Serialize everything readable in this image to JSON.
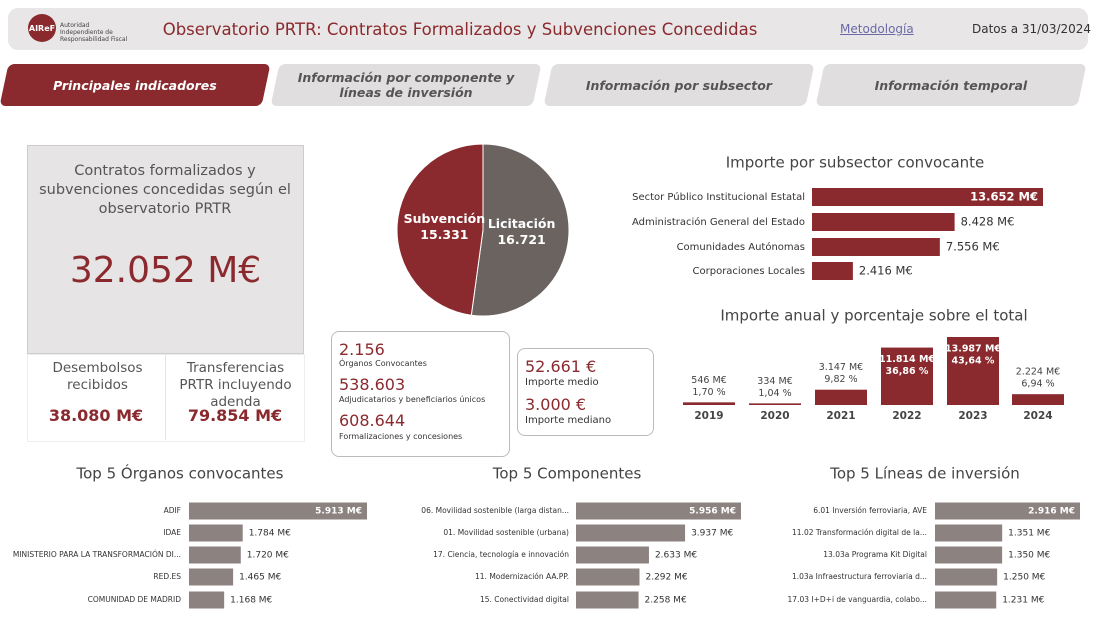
{
  "header": {
    "logo": "AIReF",
    "logo_text": "Autoridad Independiente de Responsabilidad Fiscal",
    "title": "Observatorio PRTR: Contratos Formalizados y Subvenciones Concedidas",
    "link": "Metodología",
    "date": "Datos a 31/03/2024"
  },
  "tabs": [
    "Principales indicadores",
    "Información por componente y líneas de inversión",
    "Información por subsector",
    "Información temporal"
  ],
  "kpi": {
    "title": "Contratos formalizados y subvenciones concedidas según el observatorio PRTR",
    "value": "32.052 M€",
    "cards": [
      {
        "label": "Desembolsos recibidos",
        "value": "38.080 M€"
      },
      {
        "label": "Transferencias PRTR incluyendo adenda",
        "value": "79.854 M€"
      }
    ]
  },
  "stats": [
    {
      "value": "2.156",
      "label": "Órganos Convocantes"
    },
    {
      "value": "538.603",
      "label": "Adjudicatarios y beneficiarios únicos"
    },
    {
      "value": "608.644",
      "label": "Formalizaciones y concesiones"
    }
  ],
  "averages": [
    {
      "value": "52.661 €",
      "label": "Importe medio"
    },
    {
      "value": "3.000 €",
      "label": "Importe mediano"
    }
  ],
  "chart_data": [
    {
      "type": "pie",
      "categories": [
        "Subvención",
        "Licitación"
      ],
      "values": [
        15331,
        16721
      ],
      "value_labels": [
        "15.331",
        "16.721"
      ],
      "colors": [
        "#8b2a2e",
        "#6b6360"
      ]
    },
    {
      "type": "hbar",
      "title": "Importe por subsector convocante",
      "categories": [
        "Sector Público Institucional Estatal",
        "Administración General del Estado",
        "Comunidades Autónomas",
        "Corporaciones Locales"
      ],
      "values": [
        13652,
        8428,
        7556,
        2416
      ],
      "value_labels": [
        "13.652 M€",
        "8.428 M€",
        "7.556 M€",
        "2.416 M€"
      ],
      "color": "#8b2a2e"
    },
    {
      "type": "bar",
      "title": "Importe anual y porcentaje sobre el total",
      "categories": [
        "2019",
        "2020",
        "2021",
        "2022",
        "2023",
        "2024"
      ],
      "values": [
        546,
        334,
        3147,
        11814,
        13987,
        2224
      ],
      "value_labels": [
        "546 M€",
        "334 M€",
        "3.147 M€",
        "11.814 M€",
        "13.987 M€",
        "2.224 M€"
      ],
      "share_labels": [
        "1,70 %",
        "1,04 %",
        "9,82 %",
        "36,86 %",
        "43,64 %",
        "6,94 %"
      ],
      "color": "#8b2a2e"
    },
    {
      "type": "hbar",
      "title": "Top 5 Órganos convocantes",
      "categories": [
        "ADIF",
        "IDAE",
        "MINISTERIO PARA LA TRANSFORMACIÓN DI...",
        "RED.ES",
        "COMUNIDAD DE MADRID"
      ],
      "values": [
        5913,
        1784,
        1720,
        1465,
        1168
      ],
      "value_labels": [
        "5.913 M€",
        "1.784 M€",
        "1.720 M€",
        "1.465 M€",
        "1.168 M€"
      ],
      "color": "#8c8280"
    },
    {
      "type": "hbar",
      "title": "Top 5 Componentes",
      "categories": [
        "06. Movilidad sostenible (larga distan...",
        "01. Movilidad sostenible (urbana)",
        "17. Ciencia, tecnología e innovación",
        "11. Modernización AA.PP.",
        "15. Conectividad digital"
      ],
      "values": [
        5956,
        3937,
        2633,
        2292,
        2258
      ],
      "value_labels": [
        "5.956 M€",
        "3.937 M€",
        "2.633 M€",
        "2.292 M€",
        "2.258 M€"
      ],
      "color": "#8c8280"
    },
    {
      "type": "hbar",
      "title": "Top 5 Líneas de inversión",
      "categories": [
        "6.01 Inversión ferroviaria, AVE",
        "11.02 Transformación digital de la...",
        "13.03a Programa Kit Digital",
        "1.03a Infraestructura ferroviaria d...",
        "17.03 I+D+i de vanguardia, colabo..."
      ],
      "values": [
        2916,
        1351,
        1350,
        1250,
        1231
      ],
      "value_labels": [
        "2.916 M€",
        "1.351 M€",
        "1.350 M€",
        "1.250 M€",
        "1.231 M€"
      ],
      "color": "#8c8280"
    }
  ]
}
